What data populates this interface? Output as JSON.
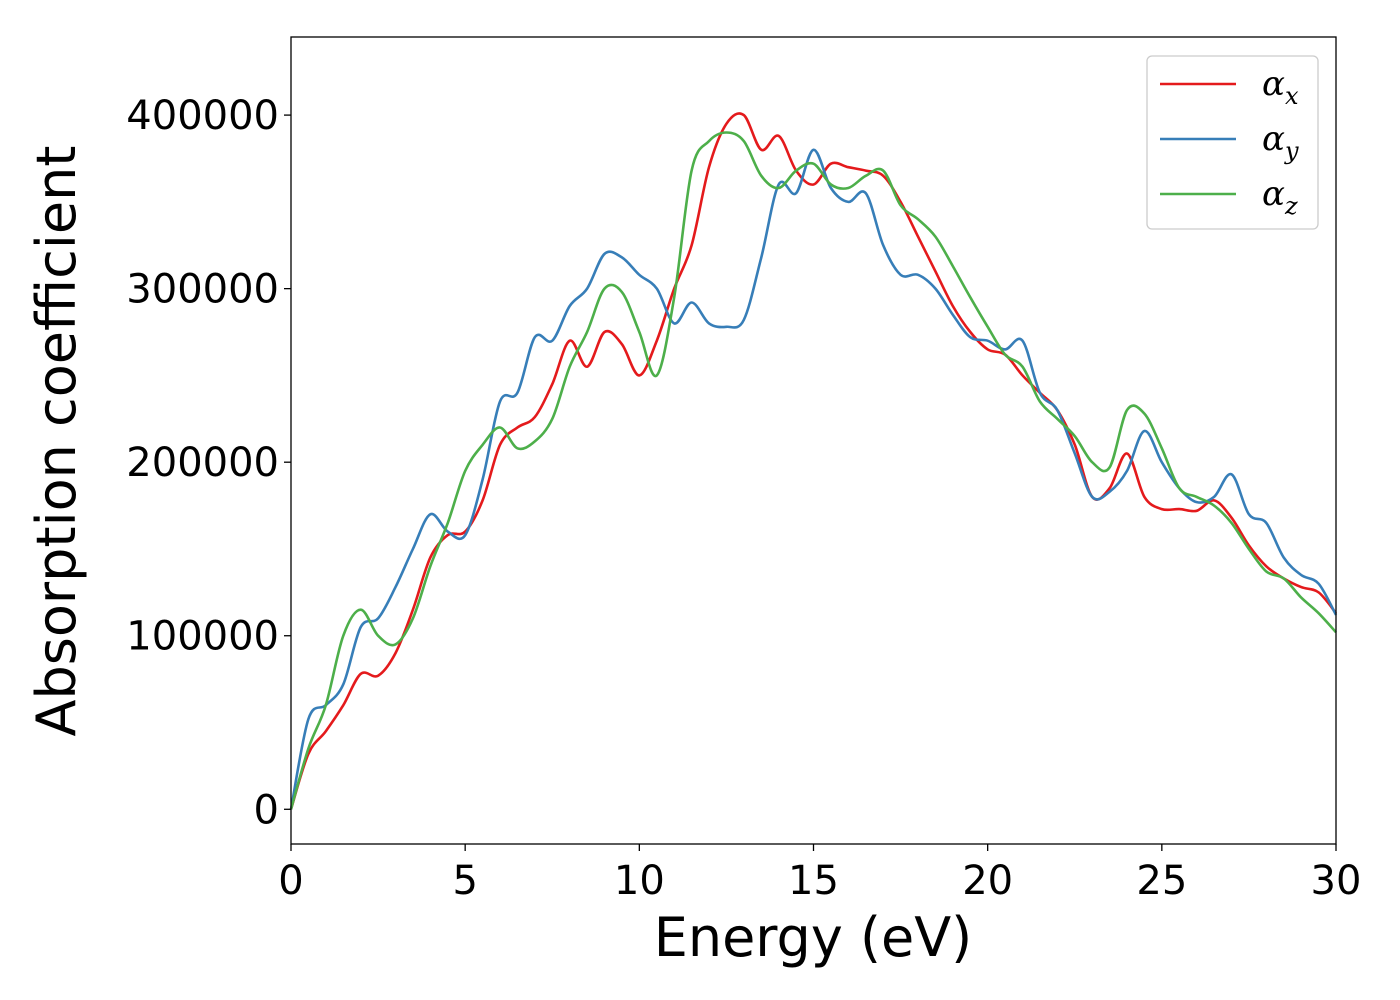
{
  "chart_data": {
    "type": "line",
    "xlabel": "Energy (eV)",
    "ylabel": "Absorption coefficient",
    "xlim": [
      0,
      30
    ],
    "ylim": [
      -20000,
      445000
    ],
    "xticks": [
      0,
      5,
      10,
      15,
      20,
      25,
      30
    ],
    "yticks": [
      0,
      100000,
      200000,
      300000,
      400000
    ],
    "grid": false,
    "legend_position": "top-right",
    "series": [
      {
        "name": "αx",
        "legend_base": "α",
        "legend_sub": "x",
        "color": "#e41a1c",
        "x": [
          0,
          0.5,
          1,
          1.5,
          2,
          2.5,
          3,
          3.5,
          4,
          4.5,
          5,
          5.5,
          6,
          6.5,
          7,
          7.5,
          8,
          8.5,
          9,
          9.5,
          10,
          10.5,
          11,
          11.5,
          12,
          12.5,
          13,
          13.5,
          14,
          14.5,
          15,
          15.5,
          16,
          16.5,
          17,
          17.5,
          18,
          18.5,
          19,
          19.5,
          20,
          20.5,
          21,
          21.5,
          22,
          22.5,
          23,
          23.5,
          24,
          24.5,
          25,
          25.5,
          26,
          26.5,
          27,
          27.5,
          28,
          28.5,
          29,
          29.5,
          30
        ],
        "y": [
          0,
          32000,
          45000,
          60000,
          78000,
          77000,
          90000,
          115000,
          145000,
          158000,
          160000,
          178000,
          210000,
          220000,
          226000,
          245000,
          270000,
          255000,
          275000,
          268000,
          250000,
          270000,
          300000,
          325000,
          370000,
          395000,
          400000,
          380000,
          388000,
          368000,
          360000,
          372000,
          370000,
          368000,
          365000,
          350000,
          330000,
          310000,
          290000,
          275000,
          265000,
          262000,
          250000,
          240000,
          230000,
          210000,
          180000,
          185000,
          205000,
          180000,
          173000,
          173000,
          172000,
          178000,
          168000,
          152000,
          140000,
          133000,
          128000,
          125000,
          113000
        ]
      },
      {
        "name": "αy",
        "legend_base": "α",
        "legend_sub": "y",
        "color": "#377eb8",
        "x": [
          0,
          0.5,
          1,
          1.5,
          2,
          2.5,
          3,
          3.5,
          4,
          4.5,
          5,
          5.5,
          6,
          6.5,
          7,
          7.5,
          8,
          8.5,
          9,
          9.5,
          10,
          10.5,
          11,
          11.5,
          12,
          12.5,
          13,
          13.5,
          14,
          14.5,
          15,
          15.5,
          16,
          16.5,
          17,
          17.5,
          18,
          18.5,
          19,
          19.5,
          20,
          20.5,
          21,
          21.5,
          22,
          22.5,
          23,
          23.5,
          24,
          24.5,
          25,
          25.5,
          26,
          26.5,
          27,
          27.5,
          28,
          28.5,
          29,
          29.5,
          30
        ],
        "y": [
          0,
          52000,
          60000,
          72000,
          105000,
          110000,
          128000,
          150000,
          170000,
          160000,
          158000,
          190000,
          235000,
          240000,
          272000,
          270000,
          290000,
          300000,
          320000,
          318000,
          308000,
          300000,
          280000,
          292000,
          280000,
          278000,
          282000,
          318000,
          360000,
          355000,
          380000,
          358000,
          350000,
          355000,
          325000,
          308000,
          308000,
          300000,
          285000,
          272000,
          270000,
          265000,
          270000,
          240000,
          230000,
          205000,
          180000,
          183000,
          195000,
          218000,
          200000,
          185000,
          177000,
          180000,
          193000,
          170000,
          165000,
          145000,
          135000,
          130000,
          112000
        ]
      },
      {
        "name": "αz",
        "legend_base": "α",
        "legend_sub": "z",
        "color": "#4daf4a",
        "x": [
          0,
          0.5,
          1,
          1.5,
          2,
          2.5,
          3,
          3.5,
          4,
          4.5,
          5,
          5.5,
          6,
          6.5,
          7,
          7.5,
          8,
          8.5,
          9,
          9.5,
          10,
          10.5,
          11,
          11.5,
          12,
          12.5,
          13,
          13.5,
          14,
          14.5,
          15,
          15.5,
          16,
          16.5,
          17,
          17.5,
          18,
          18.5,
          19,
          19.5,
          20,
          20.5,
          21,
          21.5,
          22,
          22.5,
          23,
          23.5,
          24,
          24.5,
          25,
          25.5,
          26,
          26.5,
          27,
          27.5,
          28,
          28.5,
          29,
          29.5,
          30
        ],
        "y": [
          0,
          35000,
          60000,
          100000,
          115000,
          100000,
          95000,
          110000,
          140000,
          165000,
          195000,
          210000,
          220000,
          208000,
          212000,
          225000,
          255000,
          275000,
          300000,
          298000,
          275000,
          250000,
          295000,
          368000,
          385000,
          390000,
          385000,
          365000,
          358000,
          368000,
          372000,
          360000,
          358000,
          365000,
          368000,
          348000,
          340000,
          330000,
          313000,
          295000,
          278000,
          262000,
          255000,
          235000,
          225000,
          215000,
          200000,
          197000,
          230000,
          228000,
          208000,
          185000,
          180000,
          175000,
          165000,
          150000,
          137000,
          133000,
          122000,
          113000,
          102000
        ]
      }
    ]
  }
}
